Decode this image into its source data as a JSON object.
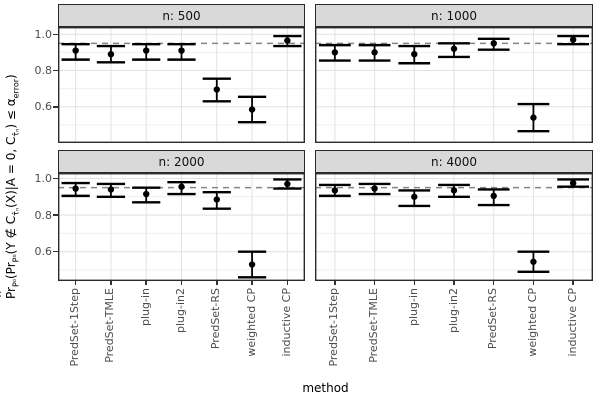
{
  "x_title": "method",
  "y_title": {
    "hat": "^",
    "s1": "Pr",
    "s1sub": "P⁰",
    "s2": "(Pr",
    "s2sub": "P⁰",
    "s3": "(Y ∉ C",
    "s3sub": "τ̂ₙ",
    "s4": "(X)|A = 0, C",
    "s4sub": "τ̂ₙ",
    "s5": ") ≤ α",
    "s5sub": "error",
    "s6": ")"
  },
  "chart_data": {
    "type": "errorbar-faceted",
    "facet_variable": "n",
    "legend_position": "none",
    "grid": "on",
    "categories": [
      "PredSet-1Step",
      "PredSet-TMLE",
      "plug-in",
      "plug-in2",
      "PredSet-RS",
      "weighted CP",
      "inductive CP"
    ],
    "y_ticks": [
      1.0,
      0.8,
      0.6
    ],
    "y_minor_gridlines": [
      0.9,
      0.7,
      0.5
    ],
    "reference_line": 0.95,
    "ylim_top_row": [
      0.4,
      1.04
    ],
    "ylim_bottom_row": [
      0.44,
      1.03
    ],
    "facets": [
      {
        "label": "n: 500",
        "estimates": [
          0.91,
          0.89,
          0.91,
          0.91,
          0.695,
          0.585,
          0.965
        ],
        "lower": [
          0.86,
          0.845,
          0.86,
          0.86,
          0.63,
          0.515,
          0.935
        ],
        "upper": [
          0.945,
          0.935,
          0.945,
          0.945,
          0.755,
          0.655,
          0.99
        ]
      },
      {
        "label": "n: 1000",
        "estimates": [
          0.9,
          0.9,
          0.89,
          0.92,
          0.95,
          0.54,
          0.97
        ],
        "lower": [
          0.855,
          0.855,
          0.84,
          0.875,
          0.915,
          0.465,
          0.945
        ],
        "upper": [
          0.94,
          0.94,
          0.935,
          0.95,
          0.975,
          0.615,
          0.99
        ]
      },
      {
        "label": "n: 2000",
        "estimates": [
          0.945,
          0.94,
          0.915,
          0.955,
          0.885,
          0.53,
          0.97
        ],
        "lower": [
          0.905,
          0.9,
          0.87,
          0.915,
          0.835,
          0.46,
          0.945
        ],
        "upper": [
          0.975,
          0.97,
          0.95,
          0.98,
          0.925,
          0.6,
          0.995
        ]
      },
      {
        "label": "n: 4000",
        "estimates": [
          0.935,
          0.945,
          0.9,
          0.935,
          0.905,
          0.545,
          0.975
        ],
        "lower": [
          0.905,
          0.915,
          0.85,
          0.9,
          0.855,
          0.49,
          0.955
        ],
        "upper": [
          0.965,
          0.97,
          0.935,
          0.965,
          0.94,
          0.6,
          0.995
        ]
      }
    ]
  },
  "style": {
    "strip_fill": "#d9d9d9",
    "strip_border": "#2b2b2b",
    "panel_border": "#2b2b2b",
    "panel_background": "#ffffff",
    "grid_major": "#e2e2e2",
    "grid_minor": "#efefef",
    "reference_line_color": "#858585",
    "data_color": "#000000",
    "tick_label_color": "#4d4d4d"
  }
}
